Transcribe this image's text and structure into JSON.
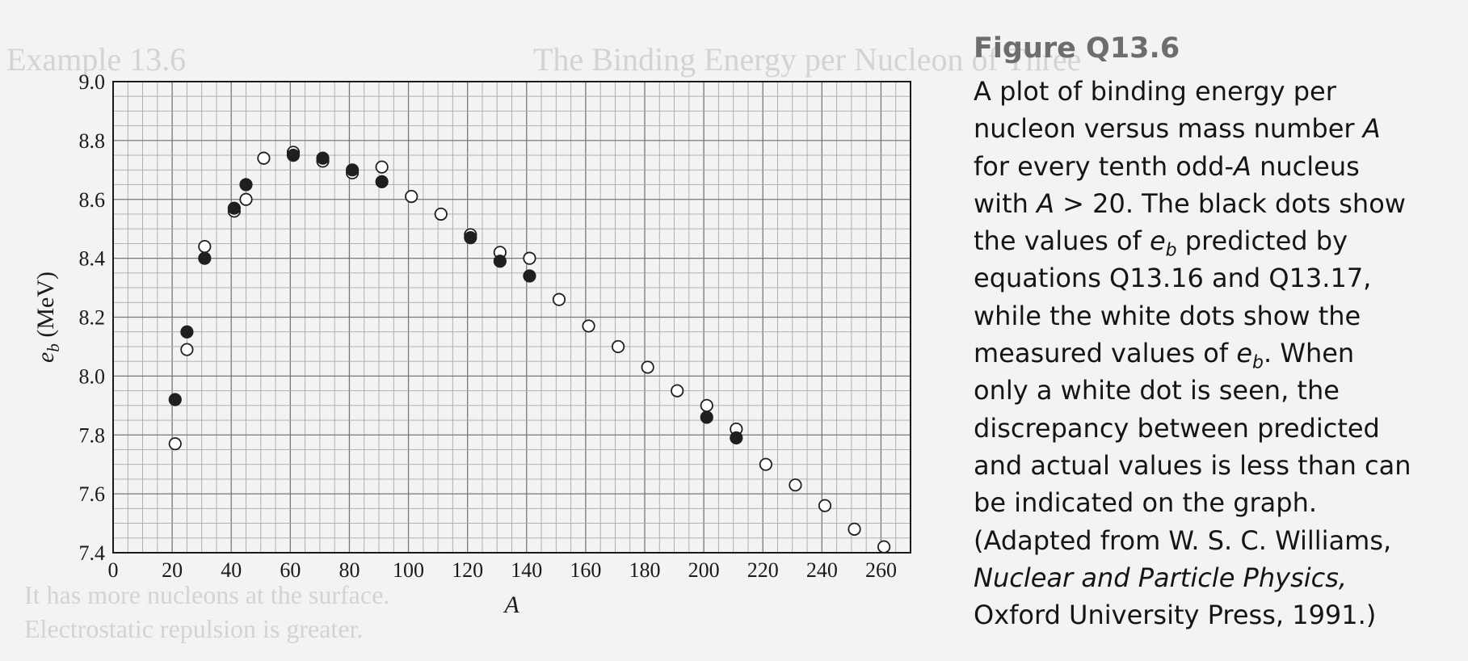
{
  "chart_data": {
    "type": "scatter",
    "xlabel": "A",
    "ylabel_main": "e",
    "ylabel_sub": "b",
    "ylabel_unit": " (MeV)",
    "xlim": [
      0,
      270
    ],
    "ylim": [
      7.4,
      9.0
    ],
    "x_ticks": [
      "0",
      "20",
      "40",
      "60",
      "80",
      "100",
      "120",
      "140",
      "160",
      "180",
      "200",
      "220",
      "240",
      "260"
    ],
    "y_ticks": [
      "7.4",
      "7.6",
      "7.8",
      "8.0",
      "8.2",
      "8.4",
      "8.6",
      "8.8",
      "9.0"
    ],
    "grid": true,
    "series": [
      {
        "marker": "filled",
        "points": [
          [
            21,
            7.92
          ],
          [
            25,
            8.15
          ],
          [
            31,
            8.4
          ],
          [
            41,
            8.57
          ],
          [
            45,
            8.65
          ],
          [
            61,
            8.75
          ],
          [
            71,
            8.74
          ],
          [
            81,
            8.7
          ],
          [
            91,
            8.66
          ],
          [
            121,
            8.47
          ],
          [
            131,
            8.39
          ],
          [
            141,
            8.34
          ],
          [
            201,
            7.86
          ],
          [
            211,
            7.79
          ]
        ]
      },
      {
        "marker": "open",
        "points": [
          [
            21,
            7.77
          ],
          [
            25,
            8.09
          ],
          [
            31,
            8.44
          ],
          [
            41,
            8.56
          ],
          [
            45,
            8.6
          ],
          [
            51,
            8.74
          ],
          [
            61,
            8.76
          ],
          [
            71,
            8.73
          ],
          [
            81,
            8.69
          ],
          [
            91,
            8.71
          ],
          [
            101,
            8.61
          ],
          [
            111,
            8.55
          ],
          [
            121,
            8.48
          ],
          [
            131,
            8.42
          ],
          [
            141,
            8.4
          ],
          [
            151,
            8.26
          ],
          [
            161,
            8.17
          ],
          [
            171,
            8.1
          ],
          [
            181,
            8.03
          ],
          [
            191,
            7.95
          ],
          [
            201,
            7.9
          ],
          [
            211,
            7.82
          ],
          [
            221,
            7.7
          ],
          [
            231,
            7.63
          ],
          [
            241,
            7.56
          ],
          [
            251,
            7.48
          ],
          [
            261,
            7.42
          ]
        ]
      }
    ]
  },
  "caption": {
    "title": "Figure Q13.6",
    "lines": [
      [
        {
          "t": "A plot of binding energy per"
        }
      ],
      [
        {
          "t": "nucleon versus mass number "
        },
        {
          "t": "A",
          "i": true
        }
      ],
      [
        {
          "t": "for every tenth odd-"
        },
        {
          "t": "A",
          "i": true
        },
        {
          "t": " nucleus"
        }
      ],
      [
        {
          "t": "with "
        },
        {
          "t": "A",
          "i": true
        },
        {
          "t": " > 20. The black dots show"
        }
      ],
      [
        {
          "t": "the values of "
        },
        {
          "t": "e",
          "i": true
        },
        {
          "t": "b",
          "i": true,
          "sub": true
        },
        {
          "t": " predicted by"
        }
      ],
      [
        {
          "t": "equations Q13.16 and Q13.17,"
        }
      ],
      [
        {
          "t": "while the white dots show the"
        }
      ],
      [
        {
          "t": "measured values of "
        },
        {
          "t": "e",
          "i": true
        },
        {
          "t": "b",
          "i": true,
          "sub": true
        },
        {
          "t": ". When"
        }
      ],
      [
        {
          "t": "only a white dot is seen, the"
        }
      ],
      [
        {
          "t": "discrepancy between predicted"
        }
      ],
      [
        {
          "t": "and actual values is less than can"
        }
      ],
      [
        {
          "t": "be indicated on the graph."
        }
      ],
      [
        {
          "t": "(Adapted from W. S. C. Williams,"
        }
      ],
      [
        {
          "t": "Nuclear and Particle Physics,",
          "i": true
        }
      ],
      [
        {
          "t": "Oxford University Press, 1991.)"
        }
      ]
    ]
  },
  "bleed_through": {
    "heading": "Example 13.6",
    "top_text": "The Binding Energy per Nucleon of Three",
    "bottom_1": "It has more nucleons at the surface.",
    "bottom_2": "Electrostatic repulsion is greater."
  }
}
